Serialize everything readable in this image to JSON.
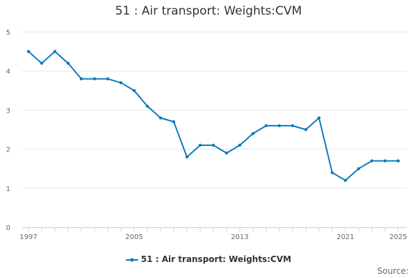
{
  "chart_data": {
    "type": "line",
    "title": "51 : Air transport: Weights:CVM",
    "xlabel": "",
    "ylabel": "",
    "x": [
      1997,
      1998,
      1999,
      2000,
      2001,
      2002,
      2003,
      2004,
      2005,
      2006,
      2007,
      2008,
      2009,
      2010,
      2011,
      2012,
      2013,
      2014,
      2015,
      2016,
      2017,
      2018,
      2019,
      2020,
      2021,
      2022,
      2023,
      2024,
      2025
    ],
    "series": [
      {
        "name": "51 : Air transport: Weights:CVM",
        "color": "#0a79bd",
        "values": [
          4.5,
          4.2,
          4.5,
          4.2,
          3.8,
          3.8,
          3.8,
          3.7,
          3.5,
          3.1,
          2.8,
          2.7,
          1.8,
          2.1,
          2.1,
          1.9,
          2.1,
          2.4,
          2.6,
          2.6,
          2.6,
          2.5,
          2.8,
          1.4,
          1.2,
          1.5,
          1.7,
          1.7,
          1.7
        ]
      }
    ],
    "xticks": [
      "1997",
      "2005",
      "2013",
      "2021",
      "2025"
    ],
    "yticks": [
      "0",
      "1",
      "2",
      "3",
      "4",
      "5"
    ],
    "ylim": [
      0,
      5
    ],
    "xlim": [
      1997,
      2025
    ],
    "grid": true,
    "legend_position": "bottom-center"
  },
  "source_label": "Source:"
}
